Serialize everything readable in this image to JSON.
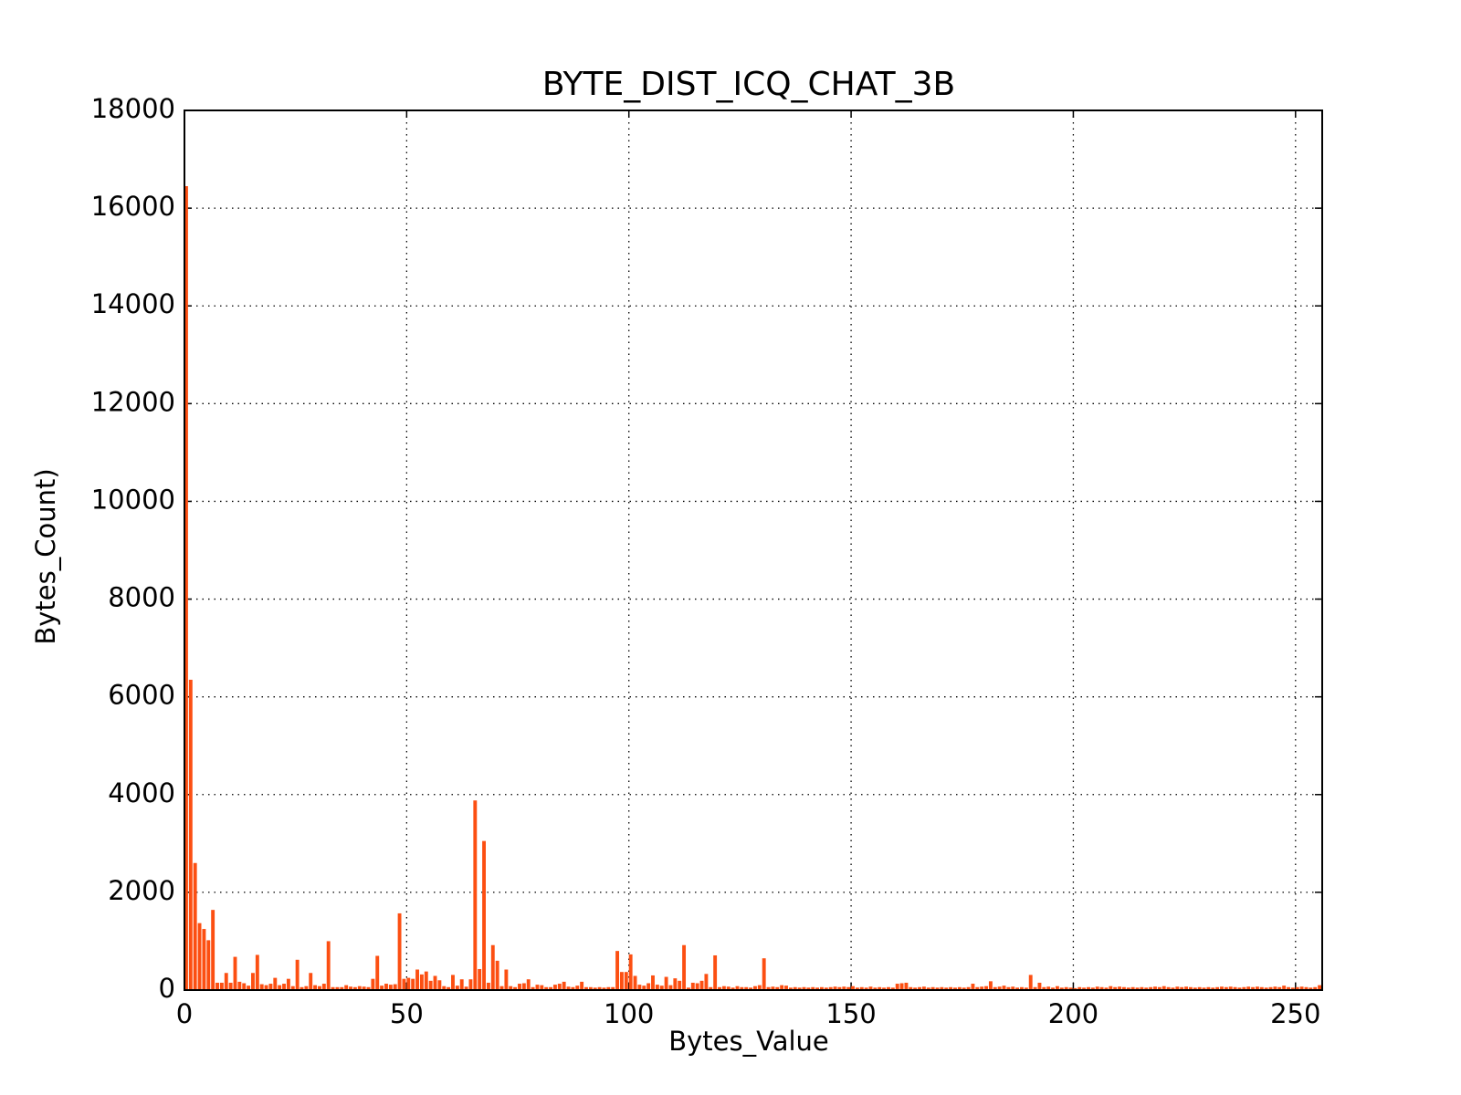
{
  "chart_data": {
    "type": "bar",
    "title": "BYTE_DIST_ICQ_CHAT_3B",
    "x_label": "Bytes_Value",
    "y_label": "Bytes_Count)",
    "x": [
      0,
      1,
      2,
      3,
      4,
      5,
      6,
      7,
      8,
      9,
      10,
      11,
      12,
      13,
      14,
      15,
      16,
      17,
      18,
      19,
      20,
      21,
      22,
      23,
      24,
      25,
      26,
      27,
      28,
      29,
      30,
      31,
      32,
      33,
      34,
      35,
      36,
      37,
      38,
      39,
      40,
      41,
      42,
      43,
      44,
      45,
      46,
      47,
      48,
      49,
      50,
      51,
      52,
      53,
      54,
      55,
      56,
      57,
      58,
      59,
      60,
      61,
      62,
      63,
      64,
      65,
      66,
      67,
      68,
      69,
      70,
      71,
      72,
      73,
      74,
      75,
      76,
      77,
      78,
      79,
      80,
      81,
      82,
      83,
      84,
      85,
      86,
      87,
      88,
      89,
      90,
      91,
      92,
      93,
      94,
      95,
      96,
      97,
      98,
      99,
      100,
      101,
      102,
      103,
      104,
      105,
      106,
      107,
      108,
      109,
      110,
      111,
      112,
      113,
      114,
      115,
      116,
      117,
      118,
      119,
      120,
      121,
      122,
      123,
      124,
      125,
      126,
      127,
      128,
      129,
      130,
      131,
      132,
      133,
      134,
      135,
      136,
      137,
      138,
      139,
      140,
      141,
      142,
      143,
      144,
      145,
      146,
      147,
      148,
      149,
      150,
      151,
      152,
      153,
      154,
      155,
      156,
      157,
      158,
      159,
      160,
      161,
      162,
      163,
      164,
      165,
      166,
      167,
      168,
      169,
      170,
      171,
      172,
      173,
      174,
      175,
      176,
      177,
      178,
      179,
      180,
      181,
      182,
      183,
      184,
      185,
      186,
      187,
      188,
      189,
      190,
      191,
      192,
      193,
      194,
      195,
      196,
      197,
      198,
      199,
      200,
      201,
      202,
      203,
      204,
      205,
      206,
      207,
      208,
      209,
      210,
      211,
      212,
      213,
      214,
      215,
      216,
      217,
      218,
      219,
      220,
      221,
      222,
      223,
      224,
      225,
      226,
      227,
      228,
      229,
      230,
      231,
      232,
      233,
      234,
      235,
      236,
      237,
      238,
      239,
      240,
      241,
      242,
      243,
      244,
      245,
      246,
      247,
      248,
      249,
      250,
      251,
      252,
      253,
      254,
      255
    ],
    "values": [
      16450,
      6350,
      2600,
      1370,
      1250,
      1020,
      1640,
      150,
      150,
      350,
      150,
      680,
      170,
      140,
      90,
      350,
      720,
      120,
      100,
      130,
      250,
      100,
      130,
      230,
      80,
      620,
      60,
      80,
      350,
      100,
      80,
      130,
      1000,
      60,
      60,
      60,
      100,
      70,
      60,
      80,
      70,
      60,
      230,
      700,
      90,
      130,
      110,
      120,
      1570,
      230,
      250,
      230,
      420,
      320,
      380,
      190,
      290,
      200,
      80,
      60,
      310,
      90,
      220,
      70,
      220,
      3880,
      430,
      3050,
      150,
      920,
      600,
      80,
      420,
      80,
      60,
      130,
      140,
      220,
      60,
      110,
      100,
      60,
      60,
      110,
      130,
      170,
      70,
      60,
      90,
      170,
      60,
      60,
      50,
      60,
      50,
      60,
      60,
      800,
      370,
      370,
      730,
      290,
      110,
      90,
      140,
      300,
      110,
      90,
      270,
      100,
      240,
      190,
      920,
      50,
      150,
      140,
      190,
      330,
      60,
      710,
      60,
      80,
      70,
      50,
      80,
      60,
      60,
      50,
      80,
      100,
      650,
      60,
      70,
      60,
      100,
      90,
      50,
      60,
      50,
      60,
      50,
      60,
      50,
      60,
      50,
      60,
      70,
      60,
      70,
      60,
      80,
      50,
      60,
      50,
      70,
      50,
      60,
      50,
      60,
      50,
      130,
      140,
      150,
      60,
      50,
      60,
      70,
      50,
      60,
      50,
      60,
      50,
      60,
      50,
      60,
      50,
      60,
      130,
      60,
      70,
      80,
      180,
      60,
      70,
      90,
      60,
      70,
      50,
      60,
      50,
      310,
      60,
      150,
      60,
      70,
      50,
      80,
      50,
      60,
      50,
      40,
      60,
      50,
      60,
      50,
      70,
      60,
      50,
      80,
      60,
      70,
      60,
      50,
      60,
      50,
      60,
      50,
      60,
      70,
      60,
      80,
      60,
      50,
      70,
      60,
      70,
      60,
      50,
      60,
      50,
      60,
      50,
      60,
      70,
      60,
      70,
      60,
      50,
      60,
      70,
      60,
      70,
      60,
      50,
      60,
      70,
      60,
      90,
      60,
      50,
      60,
      70,
      60,
      50,
      60,
      100
    ],
    "color": "#fc4f12",
    "bar_width": 0.8,
    "xlim": [
      0,
      256
    ],
    "xticks": [
      0,
      50,
      100,
      150,
      200,
      250
    ],
    "ylim": [
      0,
      18000
    ],
    "yticks": [
      0,
      2000,
      4000,
      6000,
      8000,
      10000,
      12000,
      14000,
      16000,
      18000
    ],
    "grid": true
  }
}
